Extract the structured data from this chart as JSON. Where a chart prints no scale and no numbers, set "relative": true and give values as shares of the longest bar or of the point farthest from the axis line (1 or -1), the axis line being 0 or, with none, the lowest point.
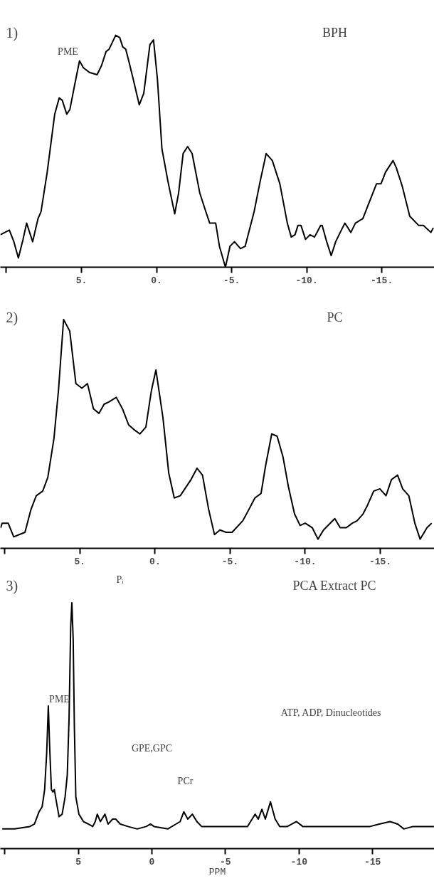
{
  "chart_data": [
    {
      "type": "line",
      "title": "BPH",
      "relative": true,
      "xlim": [
        10.4,
        -18.5
      ],
      "xticks": [
        {
          "value": 10,
          "label": null
        },
        {
          "value": 5,
          "label": "5."
        },
        {
          "value": 0,
          "label": "0."
        },
        {
          "value": -5,
          "label": "-5."
        },
        {
          "value": -10,
          "label": "-10."
        },
        {
          "value": -15,
          "label": "-15."
        }
      ],
      "annotations": [
        "1)",
        "PME"
      ],
      "x": [
        10.4,
        9.8,
        9.5,
        9.2,
        8.89,
        8.65,
        8.25,
        7.89,
        7.69,
        7.28,
        6.78,
        6.48,
        6.28,
        5.98,
        5.77,
        5.47,
        5.13,
        4.87,
        4.47,
        3.96,
        3.66,
        3.36,
        3.16,
        2.72,
        2.45,
        2.25,
        2.05,
        1.85,
        1.55,
        1.15,
        0.85,
        0.44,
        0.2,
        -0.06,
        -0.36,
        -0.76,
        -1.21,
        -1.47,
        -1.77,
        -2.07,
        -2.37,
        -2.88,
        -3.28,
        -3.54,
        -3.94,
        -4.19,
        -4.59,
        -4.89,
        -5.19,
        -5.59,
        -5.9,
        -6.5,
        -6.9,
        -7.3,
        -7.71,
        -8.21,
        -8.71,
        -8.97,
        -9.22,
        -9.42,
        -9.62,
        -9.92,
        -10.22,
        -10.52,
        -10.93,
        -11.03,
        -11.33,
        -11.63,
        -11.93,
        -12.23,
        -12.54,
        -12.94,
        -13.24,
        -13.74,
        -14.04,
        -14.65,
        -14.95,
        -15.25,
        -15.75,
        -15.96,
        -16.36,
        -16.86,
        -17.46,
        -17.77,
        -18.27,
        -18.43
      ],
      "series": [
        {
          "color": "#000000",
          "values": [
            0.14,
            0.16,
            0.11,
            0.04,
            0.12,
            0.19,
            0.11,
            0.21,
            0.24,
            0.41,
            0.66,
            0.73,
            0.72,
            0.66,
            0.68,
            0.78,
            0.89,
            0.86,
            0.84,
            0.83,
            0.87,
            0.93,
            0.94,
            1.0,
            0.99,
            0.95,
            0.94,
            0.89,
            0.81,
            0.7,
            0.75,
            0.96,
            0.98,
            0.81,
            0.51,
            0.37,
            0.23,
            0.32,
            0.49,
            0.52,
            0.49,
            0.32,
            0.24,
            0.19,
            0.19,
            0.09,
            0.0,
            0.09,
            0.11,
            0.08,
            0.09,
            0.24,
            0.37,
            0.49,
            0.46,
            0.36,
            0.19,
            0.13,
            0.14,
            0.18,
            0.18,
            0.12,
            0.14,
            0.13,
            0.18,
            0.18,
            0.11,
            0.05,
            0.11,
            0.15,
            0.19,
            0.15,
            0.19,
            0.21,
            0.26,
            0.36,
            0.36,
            0.41,
            0.46,
            0.43,
            0.35,
            0.22,
            0.18,
            0.18,
            0.15,
            0.17
          ]
        }
      ]
    },
    {
      "type": "line",
      "title": "PC",
      "relative": true,
      "xlim": [
        10.3,
        -18.6
      ],
      "xticks": [
        {
          "value": 10,
          "label": null
        },
        {
          "value": 5,
          "label": "5."
        },
        {
          "value": 0,
          "label": "0."
        },
        {
          "value": -5,
          "label": "-5."
        },
        {
          "value": -10,
          "label": "-10."
        },
        {
          "value": -15,
          "label": "-15."
        }
      ],
      "annotations": [
        "2)"
      ],
      "x": [
        10.28,
        10.18,
        9.78,
        9.41,
        8.66,
        8.26,
        7.91,
        7.48,
        7.14,
        6.73,
        6.43,
        6.09,
        5.68,
        5.27,
        4.87,
        4.5,
        4.1,
        3.73,
        3.39,
        3.08,
        2.58,
        2.17,
        1.76,
        1.42,
        1.01,
        0.61,
        0.24,
        -0.06,
        -0.53,
        -0.91,
        -1.28,
        -1.68,
        -2.39,
        -2.8,
        -3.16,
        -3.57,
        -3.96,
        -4.32,
        -4.73,
        -5.13,
        -5.84,
        -6.25,
        -6.65,
        -7.06,
        -7.36,
        -7.77,
        -8.13,
        -8.52,
        -8.88,
        -9.29,
        -9.66,
        -10.0,
        -10.47,
        -10.85,
        -11.22,
        -11.97,
        -12.33,
        -12.74,
        -13.14,
        -13.45,
        -13.85,
        -14.16,
        -14.56,
        -14.97,
        -15.38,
        -15.74,
        -16.15,
        -16.49,
        -16.9,
        -17.3,
        -17.65,
        -18.11,
        -18.42
      ],
      "series": [
        {
          "color": "#000000",
          "values": [
            0.09,
            0.11,
            0.11,
            0.05,
            0.07,
            0.17,
            0.23,
            0.25,
            0.31,
            0.48,
            0.69,
            1.0,
            0.95,
            0.72,
            0.7,
            0.72,
            0.61,
            0.59,
            0.63,
            0.64,
            0.66,
            0.61,
            0.54,
            0.52,
            0.5,
            0.53,
            0.69,
            0.78,
            0.57,
            0.33,
            0.22,
            0.23,
            0.3,
            0.35,
            0.32,
            0.17,
            0.06,
            0.08,
            0.07,
            0.07,
            0.12,
            0.17,
            0.22,
            0.24,
            0.36,
            0.5,
            0.49,
            0.4,
            0.27,
            0.15,
            0.1,
            0.11,
            0.09,
            0.04,
            0.08,
            0.13,
            0.09,
            0.09,
            0.11,
            0.12,
            0.15,
            0.19,
            0.25,
            0.26,
            0.23,
            0.3,
            0.32,
            0.26,
            0.23,
            0.11,
            0.04,
            0.09,
            0.11
          ]
        }
      ]
    },
    {
      "type": "line",
      "title": "PCA Extract PC",
      "xlabel": "PPM",
      "relative": true,
      "xlim": [
        10.3,
        -19.2
      ],
      "xticks": [
        {
          "value": 10,
          "label": null
        },
        5,
        0,
        -5,
        -10,
        -15
      ],
      "annotations": [
        "3)",
        "PME",
        "Pᵢ",
        "GPE,GPC",
        "PCr",
        "ATP, ADP, Dinucleotides"
      ],
      "x": [
        10.17,
        9.33,
        8.29,
        7.98,
        7.67,
        7.46,
        7.29,
        7.15,
        7.04,
        6.94,
        6.83,
        6.73,
        6.63,
        6.52,
        6.31,
        6.1,
        5.9,
        5.75,
        5.63,
        5.52,
        5.44,
        5.35,
        5.27,
        5.17,
        4.96,
        4.65,
        4.33,
        4.02,
        3.85,
        3.71,
        3.5,
        3.19,
        2.98,
        2.67,
        2.46,
        2.15,
        1.63,
        1.0,
        0.38,
        0.1,
        -0.15,
        -1.08,
        -1.92,
        -2.17,
        -2.44,
        -2.75,
        -3.06,
        -3.38,
        -4.21,
        -5.25,
        -6.5,
        -6.81,
        -7.02,
        -7.23,
        -7.48,
        -7.71,
        -8.06,
        -8.38,
        -8.69,
        -9.21,
        -9.83,
        -10.25,
        -11.5,
        -13.58,
        -14.83,
        -15.46,
        -16.19,
        -16.71,
        -17.13,
        -17.75,
        -18.38,
        -19.17
      ],
      "series": [
        {
          "color": "#000000",
          "values": [
            0.08,
            0.08,
            0.09,
            0.1,
            0.15,
            0.17,
            0.24,
            0.39,
            0.58,
            0.4,
            0.24,
            0.23,
            0.24,
            0.2,
            0.13,
            0.14,
            0.21,
            0.3,
            0.53,
            0.9,
            1.0,
            0.85,
            0.5,
            0.21,
            0.14,
            0.11,
            0.1,
            0.09,
            0.11,
            0.14,
            0.11,
            0.14,
            0.1,
            0.12,
            0.12,
            0.1,
            0.09,
            0.08,
            0.09,
            0.1,
            0.09,
            0.08,
            0.11,
            0.15,
            0.12,
            0.14,
            0.11,
            0.09,
            0.09,
            0.09,
            0.09,
            0.12,
            0.14,
            0.12,
            0.16,
            0.12,
            0.19,
            0.12,
            0.09,
            0.09,
            0.11,
            0.09,
            0.09,
            0.09,
            0.09,
            0.1,
            0.11,
            0.1,
            0.08,
            0.09,
            0.09,
            0.09
          ]
        }
      ]
    }
  ]
}
